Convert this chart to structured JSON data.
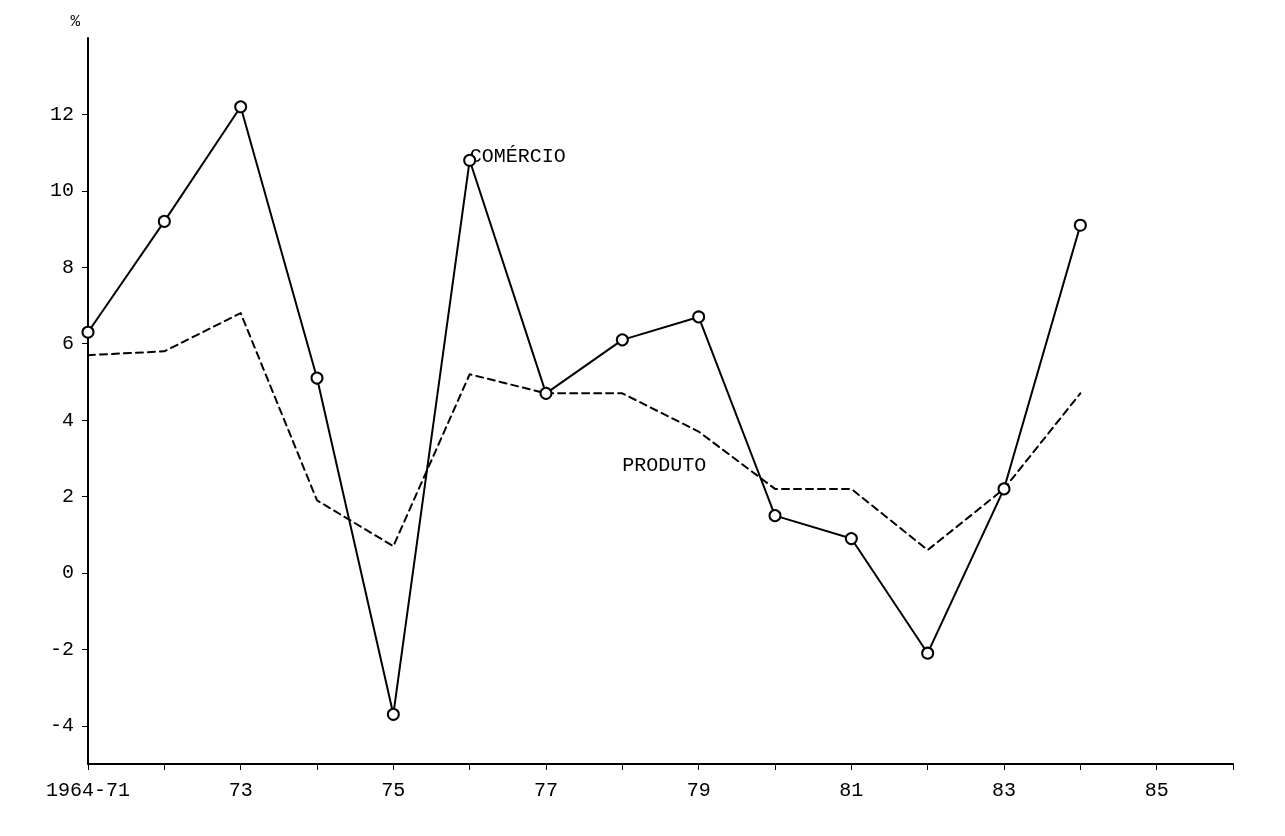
{
  "chart_data": {
    "type": "line",
    "ylabel": "%",
    "categories": [
      "1964-71",
      null,
      "73",
      null,
      "75",
      null,
      "77",
      null,
      "79",
      null,
      "81",
      null,
      "83",
      null,
      "85",
      null
    ],
    "series": [
      {
        "name": "COMÉRCIO",
        "color": "#000000",
        "marker": "circle",
        "line_style": "solid",
        "values": [
          6.3,
          9.2,
          12.2,
          5.1,
          -3.7,
          10.8,
          4.7,
          6.1,
          6.7,
          1.5,
          0.9,
          -2.1,
          2.2,
          9.1,
          null,
          null
        ]
      },
      {
        "name": "PRODUTO",
        "color": "#000000",
        "marker": "none",
        "line_style": "dashed",
        "values": [
          5.7,
          5.8,
          6.8,
          1.9,
          0.7,
          5.2,
          4.7,
          4.7,
          3.7,
          2.2,
          2.2,
          0.6,
          2.2,
          4.7,
          null,
          null
        ]
      }
    ],
    "ylim": [
      -5,
      14
    ],
    "yticks": [
      -4,
      -2,
      0,
      2,
      4,
      6,
      8,
      10,
      12
    ],
    "grid": false,
    "legend": false
  }
}
